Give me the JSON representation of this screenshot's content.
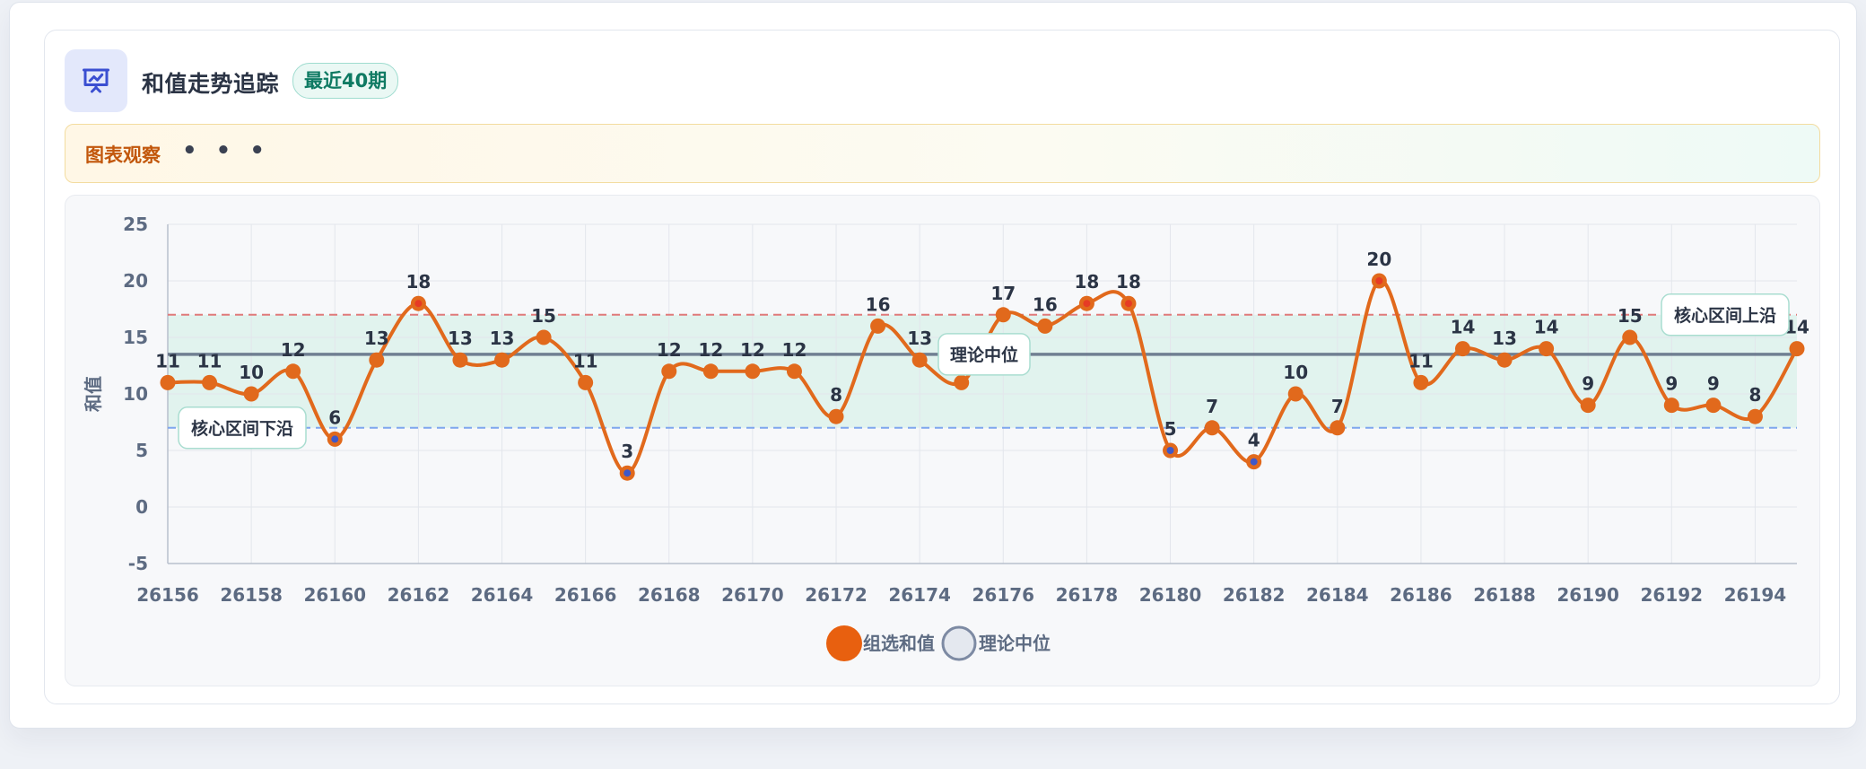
{
  "header": {
    "title": "和值走势追踪",
    "badge": "最近40期",
    "icon": "presentation-chart-icon"
  },
  "observation": {
    "label": "图表观察",
    "dots": "• • •"
  },
  "colors": {
    "series": "#e1691c",
    "band": "#d9f1ea",
    "upper_line": "#e07a7a",
    "lower_line": "#7ea6ee",
    "median_line": "#5d6b82",
    "low_point_marker": "#3f58c8",
    "high_point_marker": "#e63b25"
  },
  "chart_data": {
    "type": "line",
    "ylabel": "和值",
    "xlabel": "",
    "ylim": [
      -5,
      25
    ],
    "yticks": [
      -5,
      0,
      5,
      10,
      15,
      20,
      25
    ],
    "xticks": [
      26156,
      26158,
      26160,
      26162,
      26164,
      26166,
      26168,
      26170,
      26172,
      26174,
      26176,
      26178,
      26180,
      26182,
      26184,
      26186,
      26188,
      26190,
      26192,
      26194
    ],
    "grid": true,
    "legend_position": "bottom-center",
    "x": [
      26156,
      26157,
      26158,
      26159,
      26160,
      26161,
      26162,
      26163,
      26164,
      26165,
      26166,
      26167,
      26168,
      26169,
      26170,
      26171,
      26172,
      26173,
      26174,
      26175,
      26176,
      26177,
      26178,
      26179,
      26180,
      26181,
      26182,
      26183,
      26184,
      26185,
      26186,
      26187,
      26188,
      26189,
      26190,
      26191,
      26192,
      26193,
      26194,
      26195
    ],
    "series": [
      {
        "name": "组选和值",
        "values": [
          11,
          11,
          10,
          12,
          6,
          13,
          18,
          13,
          13,
          15,
          11,
          3,
          12,
          12,
          12,
          12,
          8,
          16,
          13,
          11,
          17,
          16,
          18,
          18,
          5,
          7,
          4,
          10,
          7,
          20,
          11,
          14,
          13,
          14,
          9,
          15,
          9,
          9,
          8,
          14
        ]
      }
    ],
    "reference_lines": [
      {
        "name": "理论中位",
        "value": 13.5
      },
      {
        "name": "核心区间上沿",
        "value": 17
      },
      {
        "name": "核心区间下沿",
        "value": 7
      }
    ],
    "legend": [
      "组选和值",
      "理论中位"
    ],
    "annotations": {
      "upper": "核心区间上沿",
      "lower": "核心区间下沿",
      "median": "理论中位"
    }
  }
}
